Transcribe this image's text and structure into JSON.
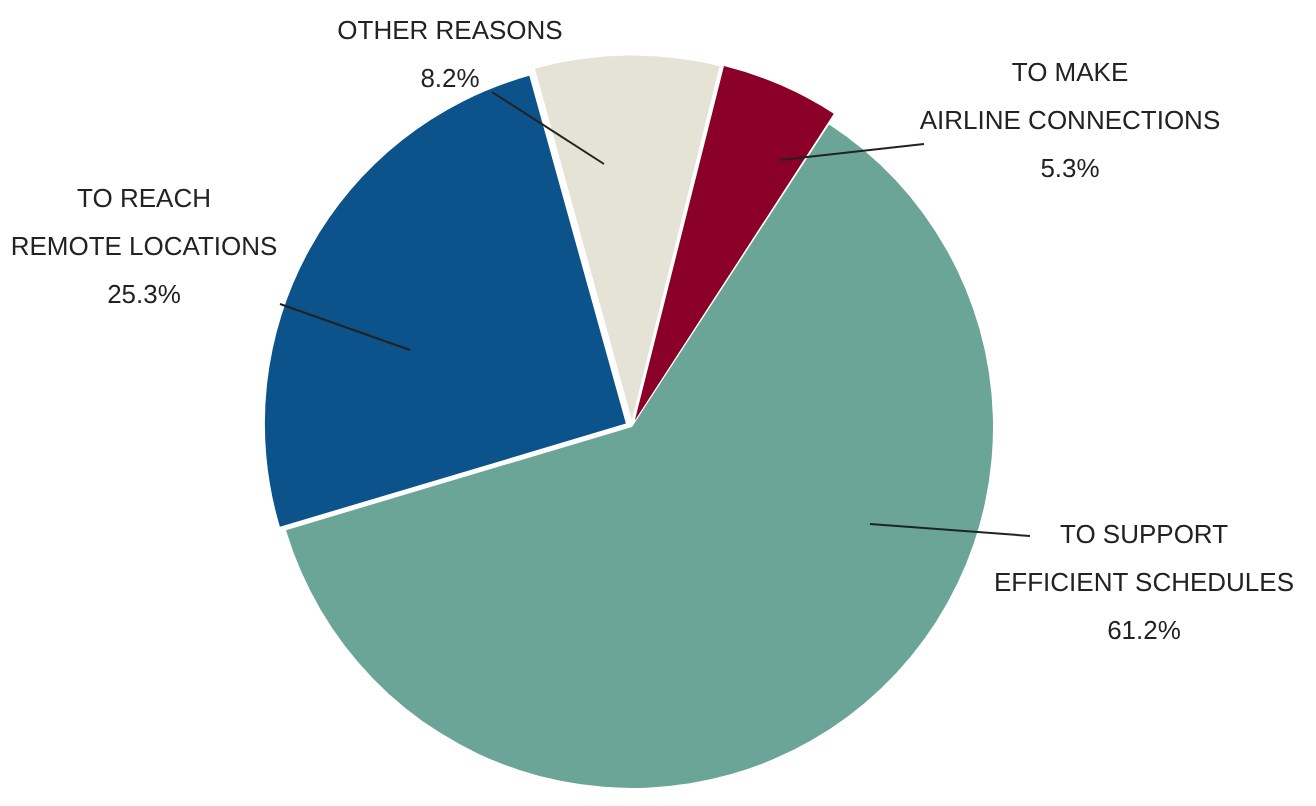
{
  "chart_data": {
    "type": "pie",
    "categories": [
      "TO MAKE AIRLINE CONNECTIONS",
      "TO SUPPORT EFFICIENT SCHEDULES",
      "TO REACH REMOTE LOCATIONS",
      "OTHER REASONS"
    ],
    "values": [
      5.3,
      61.2,
      25.3,
      8.2
    ],
    "value_labels": [
      "5.3%",
      "61.2%",
      "25.3%",
      "8.2%"
    ],
    "colors": [
      "#8b0028",
      "#6ba597",
      "#0b538a",
      "#e5e3d6"
    ],
    "legend": false
  }
}
